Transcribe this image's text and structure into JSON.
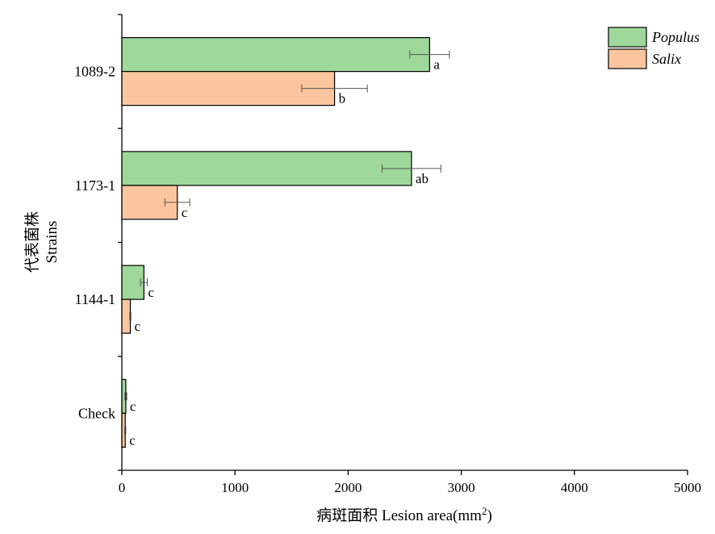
{
  "chart_data": {
    "type": "bar",
    "orientation": "horizontal",
    "categories": [
      "1089-2",
      "1173-1",
      "1144-1",
      "Check"
    ],
    "series": [
      {
        "name": "Populus",
        "color": "#9ed89a",
        "values": [
          2720,
          2560,
          195,
          35
        ],
        "errors": [
          175,
          260,
          30,
          8
        ],
        "letters": [
          "a",
          "ab",
          "c",
          "c"
        ]
      },
      {
        "name": "Salix",
        "color": "#fbc59d",
        "values": [
          1880,
          490,
          75,
          30
        ],
        "errors": [
          290,
          110,
          5,
          5
        ],
        "letters": [
          "b",
          "c",
          "c",
          "c"
        ]
      }
    ],
    "xlabel": {
      "cn": "病斑面积 Lesion area(mm",
      "sup": "2",
      "end": ")"
    },
    "ylabel": {
      "cn": "代表菌株",
      "en": "Strains"
    },
    "xlim": [
      0,
      5000
    ],
    "xticks": [
      0,
      1000,
      2000,
      3000,
      4000,
      5000
    ],
    "legend_position": "top-right",
    "grid": false
  }
}
